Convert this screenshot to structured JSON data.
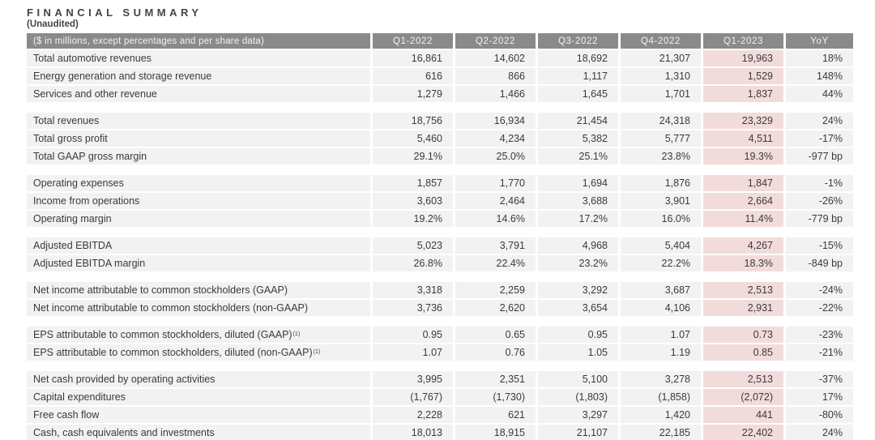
{
  "title": "FINANCIAL SUMMARY",
  "subtitle": "(Unaudited)",
  "table": {
    "header_label": "($ in millions, except percentages and per share data)",
    "columns": [
      "Q1-2022",
      "Q2-2022",
      "Q3-2022",
      "Q4-2022",
      "Q1-2023",
      "YoY"
    ],
    "highlight_column": "Q1-2023",
    "colors": {
      "header_bg": "#8a8a8a",
      "header_text": "#f2f2f2",
      "row_bg": "#f2f2f2",
      "highlight_bg": "#f2dcdb",
      "text": "#3a3a3a"
    },
    "groups": [
      {
        "rows": [
          {
            "label": "Total automotive revenues",
            "values": [
              "16,861",
              "14,602",
              "18,692",
              "21,307",
              "19,963",
              "18%"
            ]
          },
          {
            "label": "Energy generation and storage revenue",
            "values": [
              "616",
              "866",
              "1,117",
              "1,310",
              "1,529",
              "148%"
            ]
          },
          {
            "label": "Services and other revenue",
            "values": [
              "1,279",
              "1,466",
              "1,645",
              "1,701",
              "1,837",
              "44%"
            ]
          }
        ]
      },
      {
        "rows": [
          {
            "label": "Total revenues",
            "values": [
              "18,756",
              "16,934",
              "21,454",
              "24,318",
              "23,329",
              "24%"
            ]
          },
          {
            "label": "Total gross profit",
            "values": [
              "5,460",
              "4,234",
              "5,382",
              "5,777",
              "4,511",
              "-17%"
            ]
          },
          {
            "label": "Total GAAP gross margin",
            "values": [
              "29.1%",
              "25.0%",
              "25.1%",
              "23.8%",
              "19.3%",
              "-977 bp"
            ]
          }
        ]
      },
      {
        "rows": [
          {
            "label": "Operating expenses",
            "values": [
              "1,857",
              "1,770",
              "1,694",
              "1,876",
              "1,847",
              "-1%"
            ]
          },
          {
            "label": "Income from operations",
            "values": [
              "3,603",
              "2,464",
              "3,688",
              "3,901",
              "2,664",
              "-26%"
            ]
          },
          {
            "label": "Operating margin",
            "values": [
              "19.2%",
              "14.6%",
              "17.2%",
              "16.0%",
              "11.4%",
              "-779 bp"
            ]
          }
        ]
      },
      {
        "rows": [
          {
            "label": "Adjusted EBITDA",
            "values": [
              "5,023",
              "3,791",
              "4,968",
              "5,404",
              "4,267",
              "-15%"
            ]
          },
          {
            "label": "Adjusted EBITDA margin",
            "values": [
              "26.8%",
              "22.4%",
              "23.2%",
              "22.2%",
              "18.3%",
              "-849 bp"
            ]
          }
        ]
      },
      {
        "rows": [
          {
            "label": "Net income attributable to common stockholders (GAAP)",
            "values": [
              "3,318",
              "2,259",
              "3,292",
              "3,687",
              "2,513",
              "-24%"
            ]
          },
          {
            "label": "Net income attributable to common stockholders (non-GAAP)",
            "values": [
              "3,736",
              "2,620",
              "3,654",
              "4,106",
              "2,931",
              "-22%"
            ]
          }
        ]
      },
      {
        "rows": [
          {
            "label": "EPS attributable to common stockholders, diluted (GAAP)",
            "label_sup": "(1)",
            "values": [
              "0.95",
              "0.65",
              "0.95",
              "1.07",
              "0.73",
              "-23%"
            ]
          },
          {
            "label": "EPS attributable to common stockholders, diluted (non-GAAP)",
            "label_sup": "(1)",
            "values": [
              "1.07",
              "0.76",
              "1.05",
              "1.19",
              "0.85",
              "-21%"
            ]
          }
        ]
      },
      {
        "rows": [
          {
            "label": "Net cash provided by operating activities",
            "values": [
              "3,995",
              "2,351",
              "5,100",
              "3,278",
              "2,513",
              "-37%"
            ]
          },
          {
            "label": "Capital expenditures",
            "values": [
              "(1,767)",
              "(1,730)",
              "(1,803)",
              "(1,858)",
              "(2,072)",
              "17%"
            ]
          },
          {
            "label": "Free cash flow",
            "values": [
              "2,228",
              "621",
              "3,297",
              "1,420",
              "441",
              "-80%"
            ]
          },
          {
            "label": "Cash, cash equivalents and investments",
            "values": [
              "18,013",
              "18,915",
              "21,107",
              "22,185",
              "22,402",
              "24%"
            ]
          }
        ]
      }
    ]
  }
}
